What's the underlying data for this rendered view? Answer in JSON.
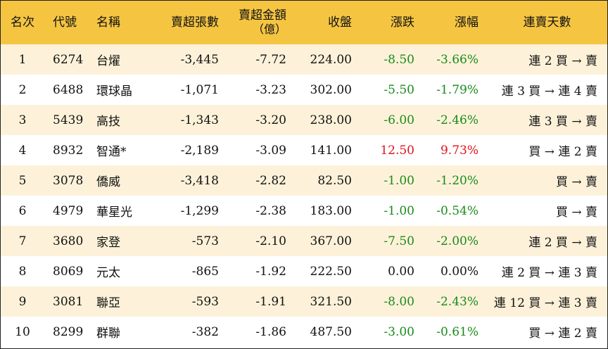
{
  "colors": {
    "header_bg": "#f5c542",
    "odd_row_bg": "#fdf2d9",
    "even_row_bg": "#ffffff",
    "negative": "#1a8a1a",
    "positive": "#e0121b"
  },
  "headers": {
    "rank": "名次",
    "code": "代號",
    "name": "名稱",
    "net_sell_lots": "賣超張數",
    "net_sell_amount_line1": "賣超金額",
    "net_sell_amount_line2": "（億）",
    "close": "收盤",
    "change": "漲跌",
    "change_pct": "漲幅",
    "consecutive": "連賣天數"
  },
  "rows": [
    {
      "rank": "1",
      "code": "6274",
      "name": "台燿",
      "lots": "-3,445",
      "amount": "-7.72",
      "close": "224.00",
      "change": "-8.50",
      "pct": "-3.66%",
      "trend": "down",
      "days": "連 2 買 → 賣"
    },
    {
      "rank": "2",
      "code": "6488",
      "name": "環球晶",
      "lots": "-1,071",
      "amount": "-3.23",
      "close": "302.00",
      "change": "-5.50",
      "pct": "-1.79%",
      "trend": "down",
      "days": "連 3 買 → 連 4 賣"
    },
    {
      "rank": "3",
      "code": "5439",
      "name": "高技",
      "lots": "-1,343",
      "amount": "-3.20",
      "close": "238.00",
      "change": "-6.00",
      "pct": "-2.46%",
      "trend": "down",
      "days": "連 3 買 → 賣"
    },
    {
      "rank": "4",
      "code": "8932",
      "name": "智通*",
      "lots": "-2,189",
      "amount": "-3.09",
      "close": "141.00",
      "change": "12.50",
      "pct": "9.73%",
      "trend": "up",
      "days": "買 → 連 2 賣"
    },
    {
      "rank": "5",
      "code": "3078",
      "name": "僑威",
      "lots": "-3,418",
      "amount": "-2.82",
      "close": "82.50",
      "change": "-1.00",
      "pct": "-1.20%",
      "trend": "down",
      "days": "買 → 賣"
    },
    {
      "rank": "6",
      "code": "4979",
      "name": "華星光",
      "lots": "-1,299",
      "amount": "-2.38",
      "close": "183.00",
      "change": "-1.00",
      "pct": "-0.54%",
      "trend": "down",
      "days": "買 → 賣"
    },
    {
      "rank": "7",
      "code": "3680",
      "name": "家登",
      "lots": "-573",
      "amount": "-2.10",
      "close": "367.00",
      "change": "-7.50",
      "pct": "-2.00%",
      "trend": "down",
      "days": "連 2 買 → 賣"
    },
    {
      "rank": "8",
      "code": "8069",
      "name": "元太",
      "lots": "-865",
      "amount": "-1.92",
      "close": "222.50",
      "change": "0.00",
      "pct": "0.00%",
      "trend": "flat",
      "days": "連 2 買 → 連 3 賣"
    },
    {
      "rank": "9",
      "code": "3081",
      "name": "聯亞",
      "lots": "-593",
      "amount": "-1.91",
      "close": "321.50",
      "change": "-8.00",
      "pct": "-2.43%",
      "trend": "down",
      "days": "連 12 買 → 連 3 賣"
    },
    {
      "rank": "10",
      "code": "8299",
      "name": "群聯",
      "lots": "-382",
      "amount": "-1.86",
      "close": "487.50",
      "change": "-3.00",
      "pct": "-0.61%",
      "trend": "down",
      "days": "買 → 連 2 賣"
    }
  ]
}
